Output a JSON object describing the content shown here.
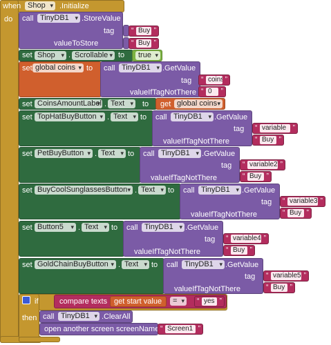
{
  "event": {
    "when": "when",
    "component": "Shop",
    "event": ".Initialize",
    "do": "do"
  },
  "statements": [
    {
      "call": "call",
      "component": "TinyDB1",
      "method": ".StoreValue",
      "params": [
        {
          "name": "tag",
          "value": "Buy"
        },
        {
          "name": "valueToStore",
          "value": "Buy"
        }
      ]
    },
    {
      "set": "set",
      "component": "Shop",
      "dot": ".",
      "property": "Scrollable",
      "to": "to",
      "value": "true"
    },
    {
      "set": "set",
      "variable": "global coins",
      "to": "to",
      "call": "call",
      "component": "TinyDB1",
      "method": ".GetValue",
      "params": [
        {
          "name": "tag",
          "value": "coins"
        },
        {
          "name": "valueIfTagNotThere",
          "value": "0"
        }
      ]
    },
    {
      "set": "set",
      "component": "CoinsAmountLabel",
      "dot": ".",
      "property": "Text",
      "to": "to",
      "get": "get",
      "variable": "global coins"
    },
    {
      "set": "set",
      "component": "TopHatBuyButton",
      "dot": ".",
      "property": "Text",
      "to": "to",
      "call": "call",
      "db": "TinyDB1",
      "method": ".GetValue",
      "params": [
        {
          "name": "tag",
          "value": "variable"
        },
        {
          "name": "valueIfTagNotThere",
          "value": "Buy"
        }
      ]
    },
    {
      "set": "set",
      "component": "PetBuyButton",
      "dot": ".",
      "property": "Text",
      "to": "to",
      "call": "call",
      "db": "TinyDB1",
      "method": ".GetValue",
      "params": [
        {
          "name": "tag",
          "value": "variable2"
        },
        {
          "name": "valueIfTagNotThere",
          "value": "Buy"
        }
      ]
    },
    {
      "set": "set",
      "component": "BuyCoolSunglassesButton",
      "dot": ".",
      "property": "Text",
      "to": "to",
      "call": "call",
      "db": "TinyDB1",
      "method": ".GetValue",
      "params": [
        {
          "name": "tag",
          "value": "variable3"
        },
        {
          "name": "valueIfTagNotThere",
          "value": "Buy"
        }
      ]
    },
    {
      "set": "set",
      "component": "Button5",
      "dot": ".",
      "property": "Text",
      "to": "to",
      "call": "call",
      "db": "TinyDB1",
      "method": ".GetValue",
      "params": [
        {
          "name": "tag",
          "value": "variable4"
        },
        {
          "name": "valueIfTagNotThere",
          "value": "Buy"
        }
      ]
    },
    {
      "set": "set",
      "component": "GoldChainBuyButton",
      "dot": ".",
      "property": "Text",
      "to": "to",
      "call": "call",
      "db": "TinyDB1",
      "method": ".GetValue",
      "params": [
        {
          "name": "tag",
          "value": "variable5"
        },
        {
          "name": "valueIfTagNotThere",
          "value": "Buy"
        }
      ]
    },
    {
      "if": "if",
      "condition": {
        "op": "compare texts",
        "left": "get start value",
        "comparator": "=",
        "right": "yes"
      },
      "then": "then",
      "statements": [
        {
          "call": "call",
          "component": "TinyDB1",
          "method": ".ClearAll"
        },
        {
          "text": "open another screen  screenName",
          "value": "Screen1"
        }
      ]
    }
  ]
}
